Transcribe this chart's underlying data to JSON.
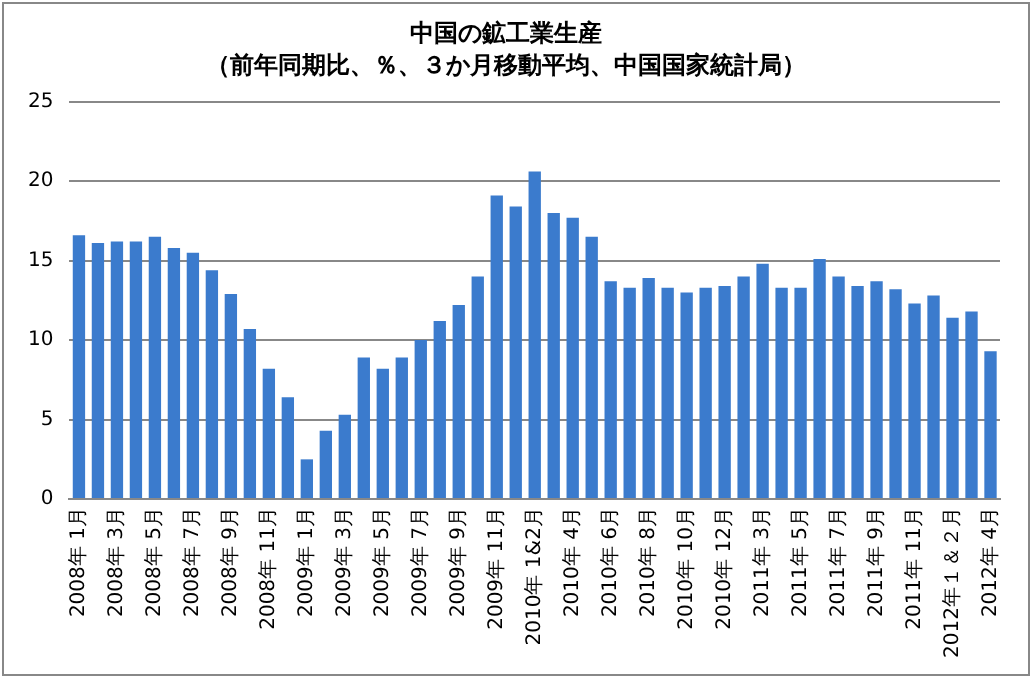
{
  "chart_data": {
    "type": "bar",
    "title": "中国の鉱工業生産",
    "subtitle": "（前年同期比、％、３か月移動平均、中国国家統計局）",
    "categories": [
      "2008年 1月",
      null,
      "2008年 3月",
      null,
      "2008年 5月",
      null,
      "2008年 7月",
      null,
      "2008年 9月",
      null,
      "2008年 11月",
      null,
      "2009年 1月",
      null,
      "2009年 3月",
      null,
      "2009年 5月",
      null,
      "2009年 7月",
      null,
      "2009年 9月",
      null,
      "2009年 11月",
      null,
      "2010年 1&2月",
      null,
      "2010年 4月",
      null,
      "2010年 6月",
      null,
      "2010年 8月",
      null,
      "2010年 10月",
      null,
      "2010年 12月",
      null,
      "2011年 3月",
      null,
      "2011年 5月",
      null,
      "2011年 7月",
      null,
      "2011年 9月",
      null,
      "2011年 11月",
      null,
      "2012年１＆２月",
      null,
      "2012年 4月"
    ],
    "values": [
      16.6,
      16.1,
      16.2,
      16.2,
      16.5,
      15.8,
      15.5,
      14.4,
      12.9,
      10.7,
      8.2,
      6.4,
      2.5,
      4.3,
      5.3,
      8.9,
      8.2,
      8.9,
      10.0,
      11.2,
      12.2,
      14.0,
      19.1,
      18.4,
      20.6,
      18.0,
      17.7,
      16.5,
      13.7,
      13.3,
      13.9,
      13.3,
      13.0,
      13.3,
      13.4,
      14.0,
      14.8,
      13.3,
      13.3,
      15.1,
      14.0,
      13.4,
      13.7,
      13.2,
      12.3,
      12.8,
      11.4,
      11.8,
      9.3
    ],
    "color": "#3b7bcd",
    "ylim": [
      0,
      25
    ],
    "yticks": [
      0,
      5,
      10,
      15,
      20,
      25
    ],
    "grid": "y",
    "legend": false
  }
}
